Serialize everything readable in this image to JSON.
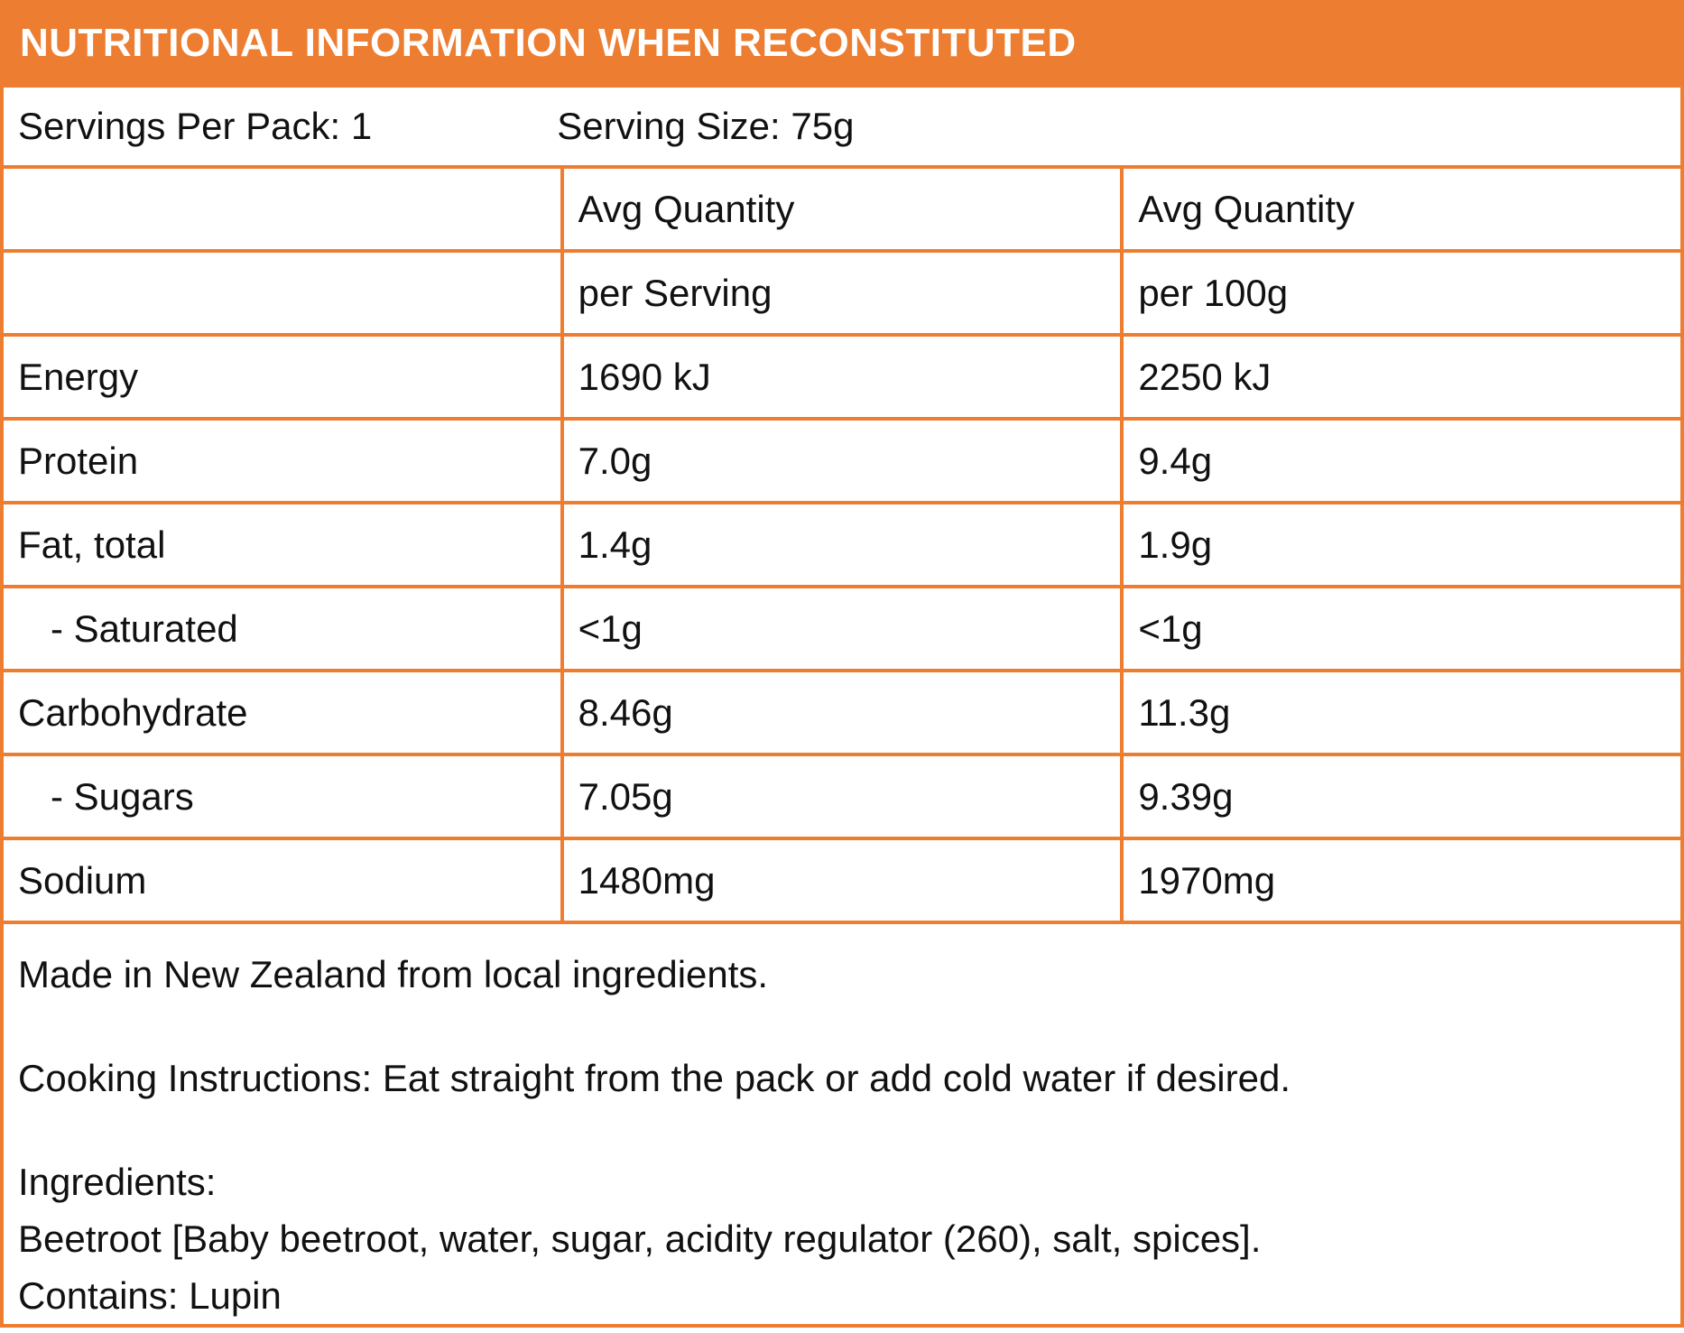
{
  "colors": {
    "accent": "#ED7D31",
    "text": "#111111",
    "background": "#FFFFFF"
  },
  "header": {
    "title": "NUTRITIONAL INFORMATION WHEN RECONSTITUTED"
  },
  "serving_info": {
    "servings_per_pack": "Servings Per Pack: 1",
    "serving_size": "Serving Size: 75g"
  },
  "table": {
    "column_headers": {
      "quantity_per_serving": {
        "line1": "Avg Quantity",
        "line2": "per Serving"
      },
      "quantity_per_100g": {
        "line1": "Avg Quantity",
        "line2": "per 100g"
      }
    },
    "rows": [
      {
        "label": "Energy",
        "per_serving": "1690 kJ",
        "per_100g": "2250 kJ"
      },
      {
        "label": "Protein",
        "per_serving": "7.0g",
        "per_100g": "9.4g"
      },
      {
        "label": "Fat, total",
        "per_serving": "1.4g",
        "per_100g": "1.9g"
      },
      {
        "label": "- Saturated",
        "per_serving": "<1g",
        "per_100g": "<1g"
      },
      {
        "label": "Carbohydrate",
        "per_serving": "8.46g",
        "per_100g": "11.3g"
      },
      {
        "label": "- Sugars",
        "per_serving": "7.05g",
        "per_100g": "9.39g"
      },
      {
        "label": "Sodium",
        "per_serving": "1480mg",
        "per_100g": "1970mg"
      }
    ]
  },
  "footer": {
    "made_in": "Made in New Zealand from local ingredients.",
    "cooking_instructions": "Cooking Instructions: Eat straight from the pack or add cold water if desired.",
    "ingredients_heading": "Ingredients:",
    "ingredients": "Beetroot [Baby beetroot, water, sugar, acidity regulator (260), salt, spices].",
    "contains": "Contains: Lupin"
  }
}
